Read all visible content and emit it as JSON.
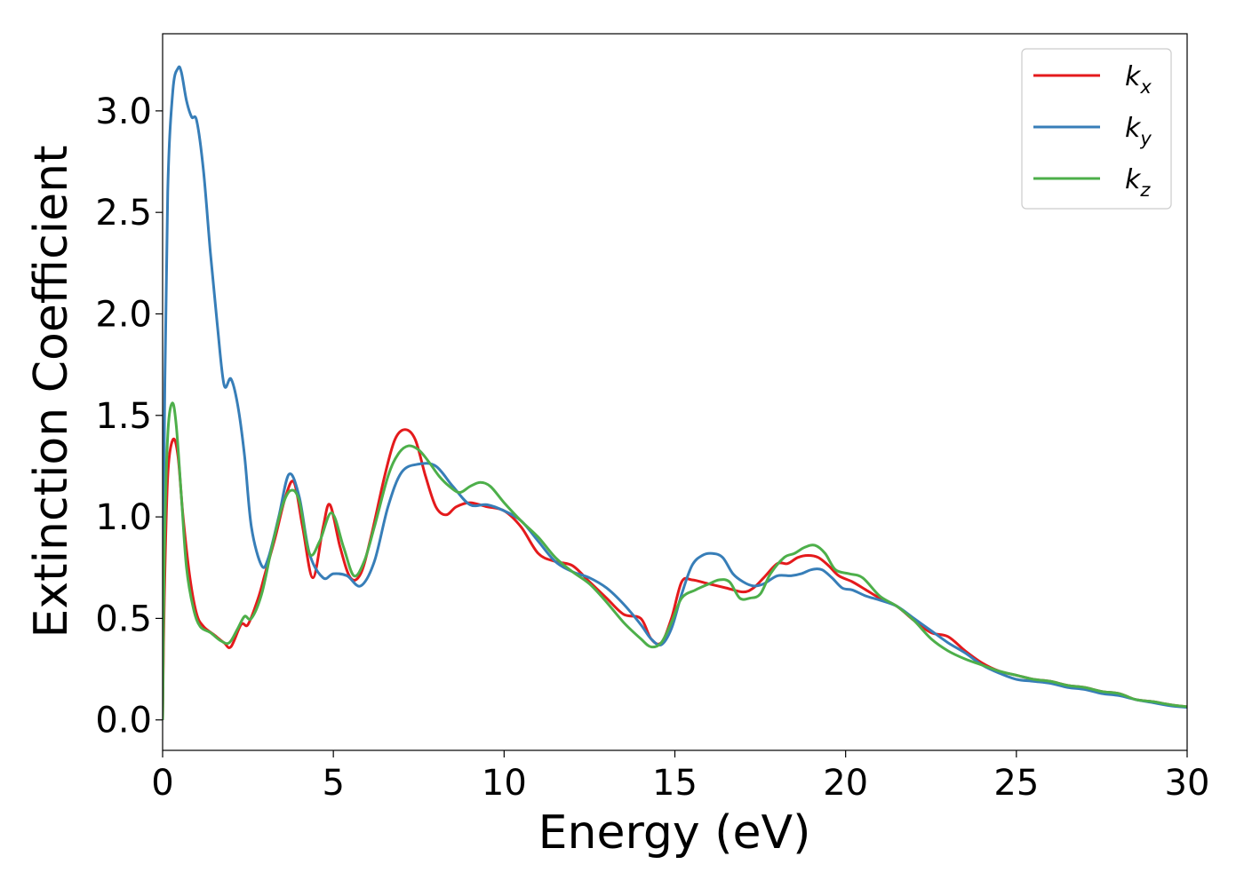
{
  "chart_data": {
    "type": "line",
    "title": "",
    "xlabel": "Energy (eV)",
    "ylabel": "Extinction Coefficient",
    "xlim": [
      0,
      30
    ],
    "ylim": [
      -0.15,
      3.38
    ],
    "xticks": [
      0,
      5,
      10,
      15,
      20,
      25,
      30
    ],
    "xtick_labels": [
      "0",
      "5",
      "10",
      "15",
      "20",
      "25",
      "30"
    ],
    "yticks": [
      0.0,
      0.5,
      1.0,
      1.5,
      2.0,
      2.5,
      3.0
    ],
    "ytick_labels": [
      "0.0",
      "0.5",
      "1.0",
      "1.5",
      "2.0",
      "2.5",
      "3.0"
    ],
    "grid": false,
    "legend_position": "top-right",
    "series": [
      {
        "name": "k",
        "subscript": "x",
        "color": "#e41a1c",
        "x": [
          0,
          0.05,
          0.15,
          0.3,
          0.45,
          0.6,
          0.8,
          1.0,
          1.2,
          1.5,
          1.8,
          2.0,
          2.3,
          2.5,
          2.8,
          3.0,
          3.3,
          3.6,
          3.85,
          4.1,
          4.4,
          4.7,
          4.9,
          5.2,
          5.5,
          5.8,
          6.1,
          6.5,
          6.8,
          7.1,
          7.4,
          7.7,
          8.0,
          8.3,
          8.6,
          9.0,
          9.5,
          10.0,
          10.5,
          11.0,
          11.5,
          12.0,
          12.5,
          13.0,
          13.5,
          14.0,
          14.3,
          14.6,
          14.9,
          15.2,
          15.5,
          16.0,
          16.5,
          17.0,
          17.3,
          17.6,
          18.0,
          18.3,
          18.6,
          18.9,
          19.2,
          19.5,
          19.8,
          20.2,
          20.6,
          21.0,
          21.5,
          22.0,
          22.5,
          23.0,
          23.5,
          24.0,
          24.5,
          25.0,
          25.5,
          26.0,
          26.5,
          27.0,
          27.5,
          28.0,
          28.5,
          29.0,
          29.5,
          30.0
        ],
        "y": [
          0.0,
          0.6,
          1.2,
          1.38,
          1.3,
          1.0,
          0.7,
          0.52,
          0.46,
          0.42,
          0.38,
          0.36,
          0.47,
          0.47,
          0.6,
          0.72,
          0.9,
          1.1,
          1.17,
          0.95,
          0.7,
          0.95,
          1.06,
          0.85,
          0.7,
          0.72,
          0.9,
          1.2,
          1.38,
          1.43,
          1.38,
          1.2,
          1.05,
          1.01,
          1.05,
          1.07,
          1.05,
          1.03,
          0.95,
          0.82,
          0.78,
          0.76,
          0.68,
          0.6,
          0.52,
          0.5,
          0.4,
          0.38,
          0.5,
          0.68,
          0.69,
          0.67,
          0.65,
          0.63,
          0.65,
          0.7,
          0.77,
          0.77,
          0.8,
          0.81,
          0.8,
          0.76,
          0.71,
          0.68,
          0.64,
          0.6,
          0.56,
          0.49,
          0.43,
          0.41,
          0.34,
          0.28,
          0.24,
          0.22,
          0.2,
          0.19,
          0.17,
          0.16,
          0.14,
          0.13,
          0.1,
          0.09,
          0.075,
          0.065
        ]
      },
      {
        "name": "k",
        "subscript": "y",
        "color": "#377eb8",
        "x": [
          0,
          0.05,
          0.15,
          0.3,
          0.45,
          0.55,
          0.7,
          0.85,
          1.0,
          1.2,
          1.4,
          1.6,
          1.8,
          2.0,
          2.2,
          2.4,
          2.6,
          2.9,
          3.1,
          3.4,
          3.7,
          4.0,
          4.3,
          4.7,
          5.0,
          5.4,
          5.8,
          6.2,
          6.6,
          7.0,
          7.5,
          8.0,
          8.5,
          9.0,
          9.5,
          10.0,
          10.5,
          11.0,
          11.5,
          12.0,
          12.5,
          13.0,
          13.5,
          14.0,
          14.3,
          14.6,
          14.9,
          15.2,
          15.5,
          15.8,
          16.1,
          16.4,
          16.7,
          17.0,
          17.3,
          17.6,
          18.0,
          18.4,
          18.7,
          19.0,
          19.3,
          19.6,
          19.9,
          20.2,
          20.6,
          21.0,
          21.5,
          22.0,
          22.5,
          23.0,
          23.5,
          24.0,
          24.5,
          25.0,
          25.5,
          26.0,
          26.5,
          27.0,
          27.5,
          28.0,
          28.5,
          29.0,
          29.5,
          30.0
        ],
        "y": [
          0.0,
          1.4,
          2.6,
          3.1,
          3.21,
          3.19,
          3.05,
          2.97,
          2.95,
          2.7,
          2.3,
          1.95,
          1.65,
          1.68,
          1.55,
          1.3,
          0.95,
          0.76,
          0.8,
          1.0,
          1.21,
          1.1,
          0.82,
          0.7,
          0.72,
          0.71,
          0.66,
          0.78,
          1.05,
          1.22,
          1.26,
          1.25,
          1.15,
          1.06,
          1.06,
          1.03,
          0.98,
          0.88,
          0.78,
          0.73,
          0.7,
          0.65,
          0.57,
          0.47,
          0.4,
          0.37,
          0.45,
          0.62,
          0.76,
          0.81,
          0.82,
          0.8,
          0.72,
          0.68,
          0.66,
          0.67,
          0.71,
          0.71,
          0.72,
          0.74,
          0.74,
          0.7,
          0.65,
          0.64,
          0.61,
          0.59,
          0.56,
          0.5,
          0.44,
          0.38,
          0.33,
          0.27,
          0.23,
          0.2,
          0.19,
          0.18,
          0.16,
          0.15,
          0.13,
          0.12,
          0.1,
          0.085,
          0.07,
          0.062
        ]
      },
      {
        "name": "k",
        "subscript": "z",
        "color": "#4daf4a",
        "x": [
          0,
          0.05,
          0.15,
          0.28,
          0.4,
          0.55,
          0.7,
          0.9,
          1.1,
          1.4,
          1.7,
          1.95,
          2.2,
          2.4,
          2.6,
          2.9,
          3.2,
          3.5,
          3.75,
          4.0,
          4.3,
          4.6,
          4.95,
          5.3,
          5.6,
          5.9,
          6.2,
          6.6,
          6.9,
          7.2,
          7.5,
          7.8,
          8.1,
          8.4,
          8.7,
          9.0,
          9.3,
          9.6,
          10.0,
          10.5,
          11.0,
          11.5,
          12.0,
          12.5,
          13.0,
          13.5,
          14.0,
          14.3,
          14.6,
          14.9,
          15.2,
          15.6,
          16.0,
          16.3,
          16.6,
          16.9,
          17.2,
          17.5,
          17.8,
          18.2,
          18.5,
          18.8,
          19.1,
          19.4,
          19.7,
          20.1,
          20.5,
          21.0,
          21.5,
          22.0,
          22.5,
          23.0,
          23.5,
          24.0,
          24.5,
          25.0,
          25.5,
          26.0,
          26.5,
          27.0,
          27.5,
          28.0,
          28.5,
          29.0,
          29.5,
          30.0
        ],
        "y": [
          0.0,
          0.8,
          1.4,
          1.56,
          1.45,
          1.1,
          0.75,
          0.55,
          0.46,
          0.43,
          0.39,
          0.38,
          0.45,
          0.51,
          0.5,
          0.62,
          0.85,
          1.05,
          1.13,
          1.08,
          0.82,
          0.88,
          1.02,
          0.85,
          0.71,
          0.78,
          0.95,
          1.2,
          1.31,
          1.35,
          1.33,
          1.27,
          1.2,
          1.15,
          1.12,
          1.15,
          1.17,
          1.15,
          1.07,
          0.98,
          0.9,
          0.8,
          0.73,
          0.67,
          0.58,
          0.48,
          0.4,
          0.36,
          0.38,
          0.48,
          0.6,
          0.64,
          0.67,
          0.69,
          0.68,
          0.6,
          0.6,
          0.62,
          0.72,
          0.8,
          0.82,
          0.85,
          0.86,
          0.82,
          0.74,
          0.72,
          0.7,
          0.61,
          0.56,
          0.49,
          0.4,
          0.34,
          0.3,
          0.27,
          0.24,
          0.22,
          0.2,
          0.19,
          0.17,
          0.16,
          0.14,
          0.13,
          0.1,
          0.09,
          0.075,
          0.065
        ]
      }
    ]
  }
}
